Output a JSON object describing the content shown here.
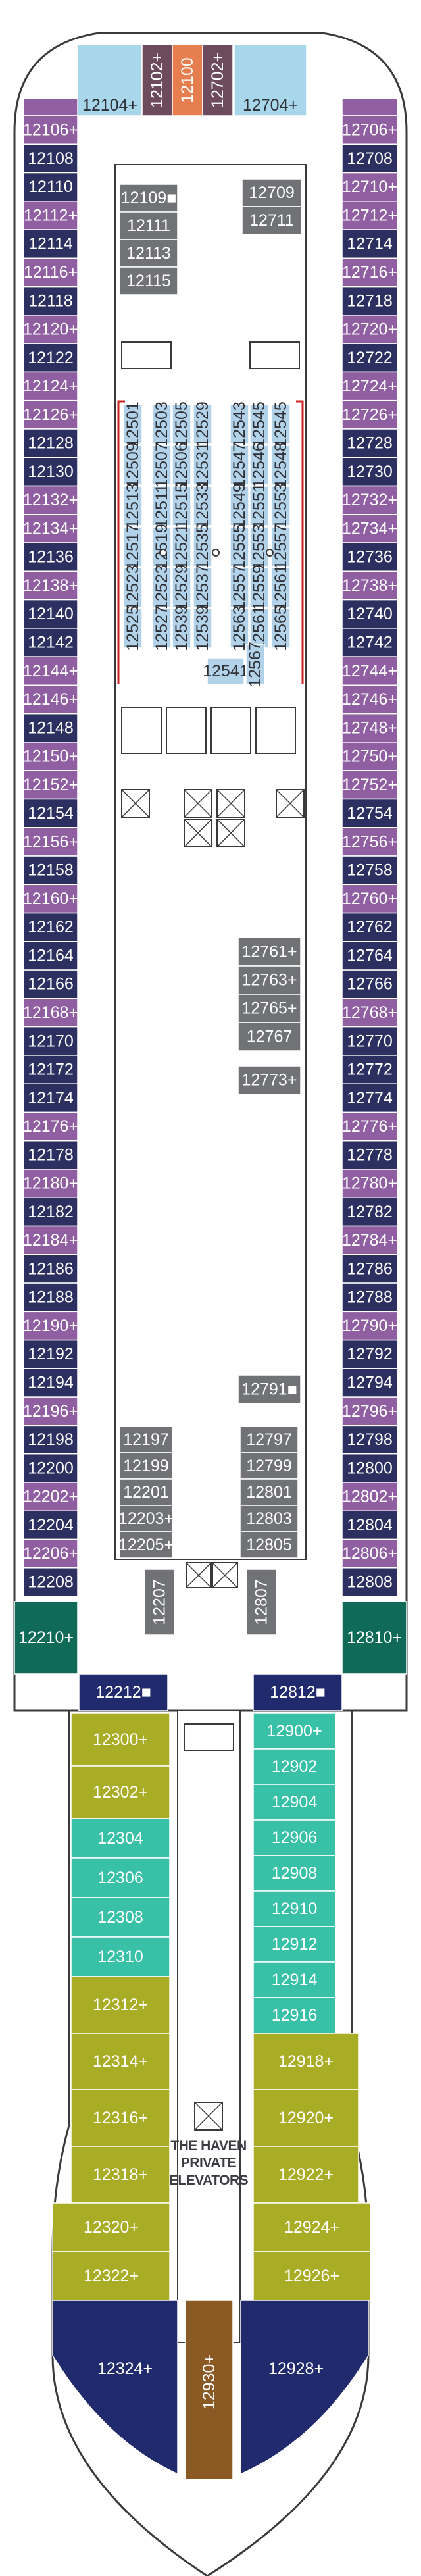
{
  "colors": {
    "navy": "#2c3060",
    "purple": "#8f5fa2",
    "lilac": "#c8a4d2",
    "lightblue": "#a8d6ea",
    "orange": "#e77e4f",
    "mauve": "#6e4a5e",
    "gray": "#707276",
    "teal_dark": "#0f6b58",
    "teal": "#39c1a8",
    "olive": "#a9ac25",
    "brown": "#8b5a24",
    "midnight": "#222a6e",
    "inner_blue": "#b2d2ea",
    "outline": "#3a3a3a"
  },
  "top_cabins": [
    {
      "label": "12104",
      "acc": "+",
      "color": "lightblue"
    },
    {
      "label": "12102",
      "acc": "+",
      "color": "mauve",
      "vertical": true
    },
    {
      "label": "12100",
      "acc": "",
      "color": "orange",
      "vertical": true
    },
    {
      "label": "12702",
      "acc": "+",
      "color": "mauve",
      "vertical": true
    },
    {
      "label": "12704",
      "acc": "+",
      "color": "lightblue"
    }
  ],
  "left_cabins": [
    {
      "label": "12106",
      "acc": "+",
      "color": "purple"
    },
    {
      "label": "12108",
      "acc": "",
      "color": "navy"
    },
    {
      "label": "12110",
      "acc": "",
      "color": "navy"
    },
    {
      "label": "12112",
      "acc": "+",
      "color": "purple"
    },
    {
      "label": "12114",
      "acc": "",
      "color": "navy"
    },
    {
      "label": "12116",
      "acc": "+",
      "color": "purple"
    },
    {
      "label": "12118",
      "acc": "",
      "color": "navy"
    },
    {
      "label": "12120",
      "acc": "+",
      "color": "purple"
    },
    {
      "label": "12122",
      "acc": "",
      "color": "navy"
    },
    {
      "label": "12124",
      "acc": "+",
      "color": "purple"
    },
    {
      "label": "12126",
      "acc": "+",
      "color": "purple"
    },
    {
      "label": "12128",
      "acc": "",
      "color": "navy"
    },
    {
      "label": "12130",
      "acc": "",
      "color": "navy"
    },
    {
      "label": "12132",
      "acc": "+",
      "color": "purple"
    },
    {
      "label": "12134",
      "acc": "+",
      "color": "purple"
    },
    {
      "label": "12136",
      "acc": "",
      "color": "navy"
    },
    {
      "label": "12138",
      "acc": "+",
      "color": "purple"
    },
    {
      "label": "12140",
      "acc": "",
      "color": "navy"
    },
    {
      "label": "12142",
      "acc": "",
      "color": "navy"
    },
    {
      "label": "12144",
      "acc": "+",
      "color": "purple"
    },
    {
      "label": "12146",
      "acc": "+",
      "color": "purple"
    },
    {
      "label": "12148",
      "acc": "",
      "color": "navy"
    },
    {
      "label": "12150",
      "acc": "+",
      "color": "purple"
    },
    {
      "label": "12152",
      "acc": "+",
      "color": "purple"
    },
    {
      "label": "12154",
      "acc": "",
      "color": "navy"
    },
    {
      "label": "12156",
      "acc": "+",
      "color": "purple"
    },
    {
      "label": "12158",
      "acc": "",
      "color": "navy"
    },
    {
      "label": "12160",
      "acc": "+",
      "color": "purple"
    },
    {
      "label": "12162",
      "acc": "",
      "color": "navy"
    },
    {
      "label": "12164",
      "acc": "",
      "color": "navy"
    },
    {
      "label": "12166",
      "acc": "",
      "color": "navy"
    },
    {
      "label": "12168",
      "acc": "+",
      "color": "purple"
    },
    {
      "label": "12170",
      "acc": "",
      "color": "navy"
    },
    {
      "label": "12172",
      "acc": "",
      "color": "navy"
    },
    {
      "label": "12174",
      "acc": "",
      "color": "navy"
    },
    {
      "label": "12176",
      "acc": "+",
      "color": "purple"
    },
    {
      "label": "12178",
      "acc": "",
      "color": "navy"
    },
    {
      "label": "12180",
      "acc": "+",
      "color": "purple"
    },
    {
      "label": "12182",
      "acc": "",
      "color": "navy"
    },
    {
      "label": "12184",
      "acc": "+",
      "color": "purple"
    },
    {
      "label": "12186",
      "acc": "",
      "color": "navy"
    },
    {
      "label": "12188",
      "acc": "",
      "color": "navy"
    },
    {
      "label": "12190",
      "acc": "+",
      "color": "purple"
    },
    {
      "label": "12192",
      "acc": "",
      "color": "navy"
    },
    {
      "label": "12194",
      "acc": "",
      "color": "navy"
    },
    {
      "label": "12196",
      "acc": "+",
      "color": "purple"
    },
    {
      "label": "12198",
      "acc": "",
      "color": "navy"
    },
    {
      "label": "12200",
      "acc": "",
      "color": "navy"
    },
    {
      "label": "12202",
      "acc": "+",
      "color": "purple"
    },
    {
      "label": "12204",
      "acc": "",
      "color": "navy"
    },
    {
      "label": "12206",
      "acc": "+",
      "color": "purple"
    },
    {
      "label": "12208",
      "acc": "",
      "color": "navy"
    }
  ],
  "right_cabins": [
    {
      "label": "12706",
      "acc": "+",
      "color": "purple"
    },
    {
      "label": "12708",
      "acc": "",
      "color": "navy"
    },
    {
      "label": "12710",
      "acc": "+",
      "color": "purple"
    },
    {
      "label": "12712",
      "acc": "+",
      "color": "purple"
    },
    {
      "label": "12714",
      "acc": "",
      "color": "navy"
    },
    {
      "label": "12716",
      "acc": "+",
      "color": "purple"
    },
    {
      "label": "12718",
      "acc": "",
      "color": "navy"
    },
    {
      "label": "12720",
      "acc": "+",
      "color": "purple"
    },
    {
      "label": "12722",
      "acc": "",
      "color": "navy"
    },
    {
      "label": "12724",
      "acc": "+",
      "color": "purple"
    },
    {
      "label": "12726",
      "acc": "+",
      "color": "purple"
    },
    {
      "label": "12728",
      "acc": "",
      "color": "navy"
    },
    {
      "label": "12730",
      "acc": "",
      "color": "navy"
    },
    {
      "label": "12732",
      "acc": "+",
      "color": "purple"
    },
    {
      "label": "12734",
      "acc": "+",
      "color": "purple"
    },
    {
      "label": "12736",
      "acc": "",
      "color": "navy"
    },
    {
      "label": "12738",
      "acc": "+",
      "color": "purple"
    },
    {
      "label": "12740",
      "acc": "",
      "color": "navy"
    },
    {
      "label": "12742",
      "acc": "",
      "color": "navy"
    },
    {
      "label": "12744",
      "acc": "+",
      "color": "purple"
    },
    {
      "label": "12746",
      "acc": "+",
      "color": "purple"
    },
    {
      "label": "12748",
      "acc": "+",
      "color": "purple"
    },
    {
      "label": "12750",
      "acc": "+",
      "color": "purple"
    },
    {
      "label": "12752",
      "acc": "+",
      "color": "purple"
    },
    {
      "label": "12754",
      "acc": "",
      "color": "navy"
    },
    {
      "label": "12756",
      "acc": "+",
      "color": "purple"
    },
    {
      "label": "12758",
      "acc": "",
      "color": "navy"
    },
    {
      "label": "12760",
      "acc": "+",
      "color": "purple"
    },
    {
      "label": "12762",
      "acc": "",
      "color": "navy"
    },
    {
      "label": "12764",
      "acc": "",
      "color": "navy"
    },
    {
      "label": "12766",
      "acc": "",
      "color": "navy"
    },
    {
      "label": "12768",
      "acc": "+",
      "color": "purple"
    },
    {
      "label": "12770",
      "acc": "",
      "color": "navy"
    },
    {
      "label": "12772",
      "acc": "",
      "color": "navy"
    },
    {
      "label": "12774",
      "acc": "",
      "color": "navy"
    },
    {
      "label": "12776",
      "acc": "+",
      "color": "purple"
    },
    {
      "label": "12778",
      "acc": "",
      "color": "navy"
    },
    {
      "label": "12780",
      "acc": "+",
      "color": "purple"
    },
    {
      "label": "12782",
      "acc": "",
      "color": "navy"
    },
    {
      "label": "12784",
      "acc": "+",
      "color": "purple"
    },
    {
      "label": "12786",
      "acc": "",
      "color": "navy"
    },
    {
      "label": "12788",
      "acc": "",
      "color": "navy"
    },
    {
      "label": "12790",
      "acc": "+",
      "color": "purple"
    },
    {
      "label": "12792",
      "acc": "",
      "color": "navy"
    },
    {
      "label": "12794",
      "acc": "",
      "color": "navy"
    },
    {
      "label": "12796",
      "acc": "+",
      "color": "purple"
    },
    {
      "label": "12798",
      "acc": "",
      "color": "navy"
    },
    {
      "label": "12800",
      "acc": "",
      "color": "navy"
    },
    {
      "label": "12802",
      "acc": "+",
      "color": "purple"
    },
    {
      "label": "12804",
      "acc": "",
      "color": "navy"
    },
    {
      "label": "12806",
      "acc": "+",
      "color": "purple"
    },
    {
      "label": "12808",
      "acc": "",
      "color": "navy"
    }
  ],
  "inner_left_cabins": [
    {
      "label": "12109",
      "acc": "■"
    },
    {
      "label": "12111",
      "acc": ""
    },
    {
      "label": "12113",
      "acc": ""
    },
    {
      "label": "12115",
      "acc": ""
    }
  ],
  "inner_right_top_cabins": [
    {
      "label": "12709",
      "acc": ""
    },
    {
      "label": "12711",
      "acc": ""
    }
  ],
  "inner_right_mid_cabins": [
    {
      "label": "12761",
      "acc": "+"
    },
    {
      "label": "12763",
      "acc": "+"
    },
    {
      "label": "12765",
      "acc": "+"
    },
    {
      "label": "12767",
      "acc": ""
    }
  ],
  "inner_single_cabins": [
    {
      "label": "12773",
      "acc": "+"
    },
    {
      "label": "12791",
      "acc": "■"
    }
  ],
  "inner_aft_left_cabins": [
    {
      "label": "12197",
      "acc": ""
    },
    {
      "label": "12199",
      "acc": ""
    },
    {
      "label": "12201",
      "acc": ""
    },
    {
      "label": "12203",
      "acc": "+"
    },
    {
      "label": "12205",
      "acc": "+"
    }
  ],
  "inner_aft_right_cabins": [
    {
      "label": "12797",
      "acc": ""
    },
    {
      "label": "12799",
      "acc": ""
    },
    {
      "label": "12801",
      "acc": ""
    },
    {
      "label": "12803",
      "acc": ""
    },
    {
      "label": "12805",
      "acc": ""
    }
  ],
  "inner_vertical_cabins": [
    {
      "label": "12207",
      "acc": ""
    },
    {
      "label": "12807",
      "acc": ""
    }
  ],
  "studio_cols": [
    [
      "12501",
      "12509",
      "12513",
      "12517",
      "12523",
      "12525"
    ],
    [
      "12503",
      "12507",
      "12511",
      "12519",
      "12523",
      "12527"
    ],
    [
      "12505",
      "12506",
      "12515",
      "12521",
      "12529",
      "12539"
    ],
    [
      "12529",
      "12531",
      "12533",
      "12535",
      "12537",
      "12539"
    ],
    [
      "12543",
      "12547",
      "12549",
      "12555",
      "12557",
      "12563"
    ],
    [
      "12545",
      "12546",
      "12551",
      "12553",
      "12559",
      "12561"
    ],
    [
      "12545",
      "12548",
      "12553",
      "12557",
      "12561",
      "12565"
    ]
  ],
  "studio_extra": [
    {
      "label": "12541"
    },
    {
      "label": "12567"
    }
  ],
  "corner_cabins": [
    {
      "label": "12210",
      "acc": "+",
      "color": "teal_dark"
    },
    {
      "label": "12810",
      "acc": "+",
      "color": "teal_dark"
    },
    {
      "label": "12212",
      "acc": "■",
      "color": "midnight"
    },
    {
      "label": "12812",
      "acc": "■",
      "color": "midnight"
    }
  ],
  "haven_left": [
    {
      "label": "12300",
      "acc": "+",
      "color": "olive"
    },
    {
      "label": "12302",
      "acc": "+",
      "color": "olive"
    },
    {
      "label": "12304",
      "acc": "",
      "color": "teal"
    },
    {
      "label": "12306",
      "acc": "",
      "color": "teal"
    },
    {
      "label": "12308",
      "acc": "",
      "color": "teal"
    },
    {
      "label": "12310",
      "acc": "",
      "color": "teal"
    },
    {
      "label": "12312",
      "acc": "+",
      "color": "olive"
    },
    {
      "label": "12314",
      "acc": "+",
      "color": "olive"
    },
    {
      "label": "12316",
      "acc": "+",
      "color": "olive"
    },
    {
      "label": "12318",
      "acc": "+",
      "color": "olive"
    },
    {
      "label": "12320",
      "acc": "+",
      "color": "olive"
    },
    {
      "label": "12322",
      "acc": "+",
      "color": "olive"
    }
  ],
  "haven_right": [
    {
      "label": "12900",
      "acc": "+",
      "color": "teal"
    },
    {
      "label": "12902",
      "acc": "",
      "color": "teal"
    },
    {
      "label": "12904",
      "acc": "",
      "color": "teal"
    },
    {
      "label": "12906",
      "acc": "",
      "color": "teal"
    },
    {
      "label": "12908",
      "acc": "",
      "color": "teal"
    },
    {
      "label": "12910",
      "acc": "",
      "color": "teal"
    },
    {
      "label": "12912",
      "acc": "",
      "color": "teal"
    },
    {
      "label": "12914",
      "acc": "",
      "color": "teal"
    },
    {
      "label": "12916",
      "acc": "",
      "color": "teal"
    },
    {
      "label": "12918",
      "acc": "+",
      "color": "olive"
    },
    {
      "label": "12920",
      "acc": "+",
      "color": "olive"
    },
    {
      "label": "12922",
      "acc": "+",
      "color": "olive"
    },
    {
      "label": "12924",
      "acc": "+",
      "color": "olive"
    },
    {
      "label": "12926",
      "acc": "+",
      "color": "olive"
    }
  ],
  "aft_cabins": [
    {
      "label": "12324",
      "acc": "+",
      "color": "midnight"
    },
    {
      "label": "12930",
      "acc": "+",
      "color": "brown"
    },
    {
      "label": "12928",
      "acc": "+",
      "color": "midnight"
    }
  ],
  "haven_elevators": [
    "THE HAVEN",
    "PRIVATE",
    "ELEVATORS"
  ]
}
